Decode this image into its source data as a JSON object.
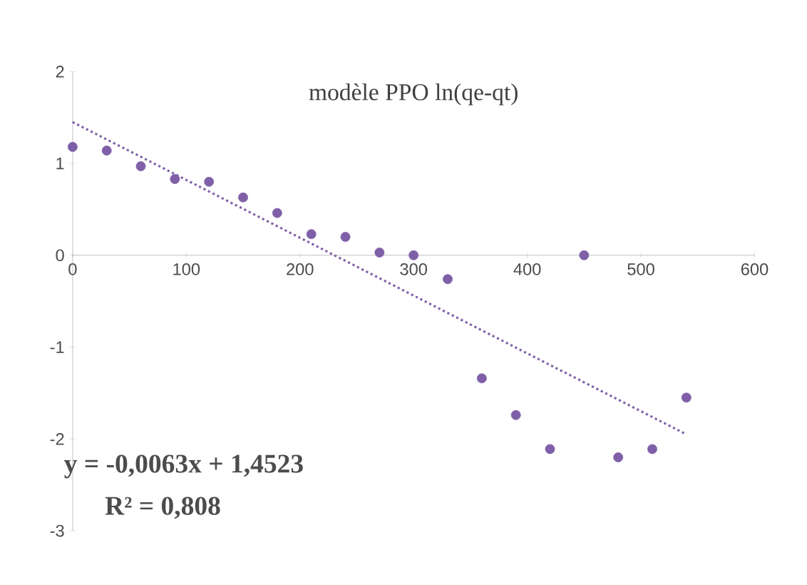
{
  "chart_data": {
    "type": "scatter",
    "title": "modèle PPO ln(qe-qt)",
    "x": [
      0,
      30,
      60,
      90,
      120,
      150,
      180,
      210,
      240,
      270,
      300,
      330,
      360,
      390,
      420,
      450,
      480,
      510,
      540
    ],
    "series": [
      {
        "color": "#7f60a8",
        "marker": "circle",
        "values": [
          1.18,
          1.14,
          0.97,
          0.83,
          0.8,
          0.63,
          0.46,
          0.23,
          0.2,
          0.03,
          0.0,
          -0.26,
          -1.34,
          -1.74,
          -2.11,
          0.0,
          -2.2,
          -2.11,
          -1.55
        ]
      },
      {
        "type": "line",
        "color": "#7f60a8",
        "line_style": "dotted",
        "marker": "none",
        "x": [
          0,
          540
        ],
        "values": [
          1.45,
          -1.95
        ]
      }
    ],
    "xlim": [
      0,
      600
    ],
    "ylim": [
      -3,
      2
    ],
    "xticks": [
      0,
      100,
      200,
      300,
      400,
      500,
      600
    ],
    "yticks": [
      -3,
      -2,
      -1,
      0,
      1,
      2
    ],
    "annotations": [
      "**y = -0,0063x + 1,4523**",
      "**R² = 0,808**"
    ],
    "grid": false
  }
}
